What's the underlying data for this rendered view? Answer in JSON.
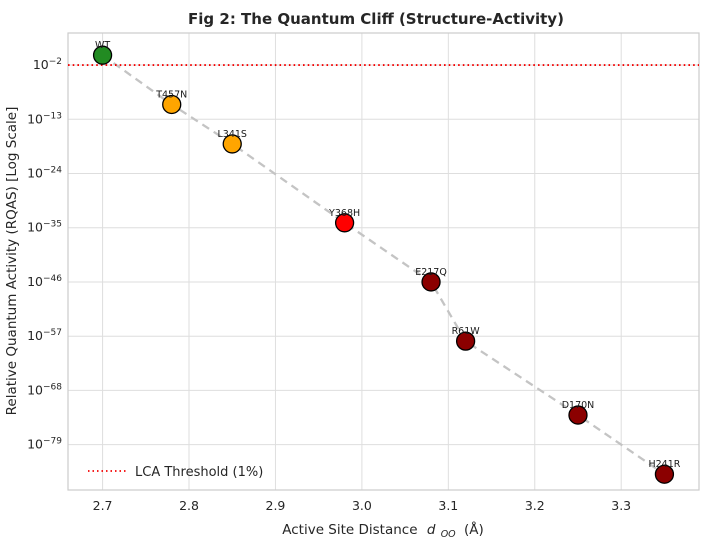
{
  "figure": {
    "title": "Fig 2: The Quantum Cliff (Structure-Activity)",
    "background": "#ffffff"
  },
  "chart_data": {
    "type": "scatter",
    "title": "Fig 2: The Quantum Cliff (Structure-Activity)",
    "ylabel": "Relative Quantum Activity (RQAS) [Log Scale]",
    "xlabel": {
      "prefix": "Active Site Distance",
      "symbol": "d",
      "subscript": "OO",
      "suffix": "(Å)"
    },
    "x_ticks": [
      2.7,
      2.8,
      2.9,
      3.0,
      3.1,
      3.2,
      3.3
    ],
    "y_tick_exponents": [
      -2,
      -13,
      -24,
      -35,
      -46,
      -57,
      -68,
      -79
    ],
    "xlim": [
      2.66,
      3.39
    ],
    "ylim_log_top": 4.5,
    "ylim_log_bottom": -88.2,
    "grid": true,
    "grid_color": "#dedede",
    "spine_color": "#cccccc",
    "tick_color": "#262626",
    "threshold": {
      "y_exponent": -2,
      "label": "LCA Threshold (1%)",
      "color": "#f40000",
      "style": "dotted"
    },
    "trendline": {
      "style": "dashed",
      "color": "#c4c4c4"
    },
    "points": [
      {
        "label": "WT",
        "x": 2.7,
        "y": 1.0,
        "y_exponent": 0,
        "color": "#228B22"
      },
      {
        "label": "T457N",
        "x": 2.78,
        "y": 1e-10,
        "y_exponent": -10,
        "color": "#FFA500"
      },
      {
        "label": "L341S",
        "x": 2.85,
        "y": 1e-18,
        "y_exponent": -18,
        "color": "#FFA500"
      },
      {
        "label": "Y368H",
        "x": 2.98,
        "y": 1e-34,
        "y_exponent": -34,
        "color": "#FF0000"
      },
      {
        "label": "E217Q",
        "x": 3.08,
        "y": 1e-46,
        "y_exponent": -46,
        "color": "#8B0000"
      },
      {
        "label": "R61W",
        "x": 3.12,
        "y": 1e-58,
        "y_exponent": -58,
        "color": "#8B0000"
      },
      {
        "label": "D170N",
        "x": 3.25,
        "y": 1e-73,
        "y_exponent": -73,
        "color": "#8B0000"
      },
      {
        "label": "H241R",
        "x": 3.35,
        "y": 1e-85,
        "y_exponent": -85,
        "color": "#8B0000"
      }
    ],
    "legend": {
      "position": "lower-left",
      "entries": [
        {
          "label": "LCA Threshold (1%)",
          "color": "#f40000",
          "line_style": "dotted"
        }
      ]
    }
  }
}
